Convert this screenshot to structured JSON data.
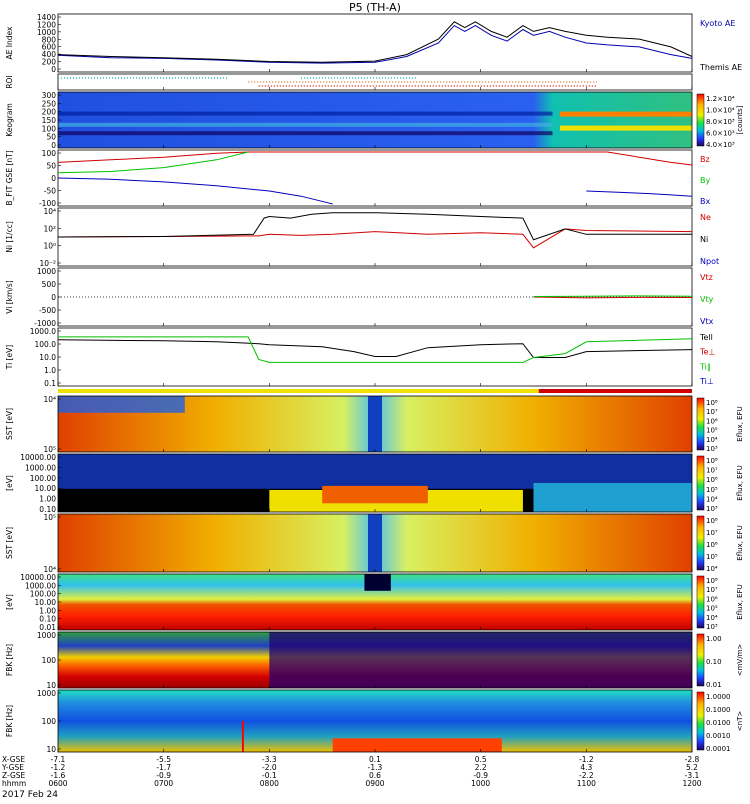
{
  "title": "P5 (TH-A)",
  "date": "2017 Feb 24",
  "colors": {
    "kyoto": "#0000b0",
    "themis": "#000000",
    "red": "#d00000",
    "green": "#00c000",
    "blue": "#0000c0",
    "black": "#000000",
    "cyan": "#00b0b0",
    "orange": "#e07000"
  },
  "chart_data": [
    {
      "id": "ae",
      "type": "line",
      "ylabel": "AE Index",
      "ylim": [
        0,
        1400
      ],
      "yticks": [
        "1400",
        "1200",
        "1000",
        "800",
        "600",
        "400",
        "200",
        "0"
      ],
      "legend": [
        {
          "label": "Kyoto AE",
          "color": "#0000b0"
        },
        {
          "label": "Themis AE",
          "color": "#000000"
        }
      ],
      "series": [
        {
          "name": "Kyoto AE",
          "x": [
            6.0,
            6.5,
            7.0,
            7.5,
            8.0,
            8.5,
            9.0,
            9.3,
            9.6,
            9.75,
            9.85,
            9.95,
            10.1,
            10.25,
            10.4,
            10.5,
            10.65,
            10.8,
            11.0,
            11.2,
            11.5,
            11.8,
            12.0
          ],
          "y": [
            380,
            320,
            300,
            260,
            200,
            180,
            200,
            350,
            700,
            1150,
            1000,
            1150,
            900,
            750,
            1050,
            900,
            1000,
            850,
            700,
            650,
            600,
            400,
            300
          ]
        },
        {
          "name": "Themis AE",
          "x": [
            6.0,
            6.5,
            7.0,
            7.5,
            8.0,
            8.5,
            9.0,
            9.3,
            9.6,
            9.75,
            9.85,
            9.95,
            10.1,
            10.25,
            10.4,
            10.5,
            10.65,
            10.8,
            11.0,
            11.2,
            11.5,
            11.8,
            12.0
          ],
          "y": [
            400,
            350,
            320,
            280,
            220,
            200,
            230,
            400,
            800,
            1250,
            1100,
            1250,
            1000,
            850,
            1150,
            1000,
            1100,
            1000,
            900,
            850,
            800,
            600,
            350
          ]
        }
      ]
    },
    {
      "id": "roi",
      "type": "line",
      "ylabel": "ROI",
      "series": [
        {
          "name": "roi-cyan",
          "color": "#00b0b0",
          "segments": [
            [
              6.0,
              7.6
            ],
            [
              8.3,
              9.4
            ]
          ]
        },
        {
          "name": "roi-orange",
          "color": "#e07000",
          "segments": [
            [
              7.8,
              11.1
            ]
          ]
        },
        {
          "name": "roi-red",
          "color": "#d00000",
          "segments": [
            [
              7.9,
              11.1
            ]
          ]
        }
      ]
    },
    {
      "id": "keogram",
      "type": "heatmap",
      "ylabel": "Keogram",
      "ylim": [
        0,
        300
      ],
      "yticks": [
        "300",
        "250",
        "200",
        "150",
        "100",
        "50",
        "0"
      ],
      "colorbar": {
        "label": "[counts]",
        "ticks": [
          "1.2×10⁴",
          "1.0×10⁴",
          "8.0×10³",
          "6.0×10³",
          "4.0×10³"
        ]
      }
    },
    {
      "id": "bfit",
      "type": "line",
      "ylabel": "B_FIT GSE [nT]",
      "ylim": [
        -100,
        100
      ],
      "yticks": [
        "100",
        "50",
        "0",
        "-50",
        "-100"
      ],
      "legend": [
        {
          "label": "Bz",
          "color": "#d00000"
        },
        {
          "label": "By",
          "color": "#00c000"
        },
        {
          "label": "Bx",
          "color": "#0000c0"
        }
      ],
      "series": [
        {
          "name": "Bz",
          "x": [
            6.0,
            6.5,
            7.0,
            7.5,
            7.8,
            11.2,
            11.5,
            11.8,
            12.0
          ],
          "y": [
            60,
            70,
            80,
            95,
            100,
            100,
            80,
            60,
            50
          ]
        },
        {
          "name": "By",
          "x": [
            6.0,
            6.5,
            7.0,
            7.5,
            7.8
          ],
          "y": [
            20,
            25,
            40,
            70,
            100
          ]
        },
        {
          "name": "Bx",
          "x": [
            6.0,
            6.5,
            7.0,
            7.5,
            8.0,
            8.3,
            8.55,
            8.6
          ],
          "y": [
            0,
            -5,
            -15,
            -30,
            -50,
            -70,
            -95,
            -100
          ]
        },
        {
          "name": "Bx-late",
          "x": [
            11.0,
            11.3,
            11.6,
            11.8,
            12.0
          ],
          "y": [
            -50,
            -55,
            -60,
            -65,
            -70
          ]
        }
      ]
    },
    {
      "id": "ni",
      "type": "line",
      "ylabel": "Ni [1/cc]",
      "scale": "log",
      "ylim": [
        -5,
        5
      ],
      "yticks": [
        "10⁴",
        "10²",
        "10⁰",
        "10⁻²"
      ],
      "legend": [
        {
          "label": "Ne",
          "color": "#d00000"
        },
        {
          "label": "Ni",
          "color": "#000000"
        },
        {
          "label": "Npot",
          "color": "#0000c0"
        }
      ],
      "series": [
        {
          "name": "Ne",
          "x": [
            6.0,
            7.0,
            7.9,
            8.0,
            8.3,
            8.6,
            9.0,
            9.5,
            10.0,
            10.4,
            10.5,
            10.8,
            11.0,
            12.0
          ],
          "y": [
            0,
            0.1,
            0.2,
            0.5,
            0.3,
            0.5,
            1.0,
            0.5,
            0.8,
            0.5,
            -2,
            1.5,
            1.2,
            1.0
          ]
        },
        {
          "name": "Ni",
          "x": [
            6.0,
            7.0,
            7.85,
            7.95,
            8.0,
            8.2,
            8.4,
            8.6,
            9.0,
            9.5,
            10.0,
            10.4,
            10.5,
            10.8,
            11.0,
            12.0
          ],
          "y": [
            0,
            0.1,
            0.5,
            3.5,
            3.8,
            3.5,
            4.2,
            4.5,
            4.5,
            4.2,
            3.8,
            3.5,
            -0.5,
            1.5,
            0.5,
            0.5
          ]
        }
      ]
    },
    {
      "id": "vi",
      "type": "line",
      "ylabel": "Vi [km/s]",
      "ylim": [
        -1500,
        1500
      ],
      "yticks": [
        "1000",
        "500",
        "0",
        "-500",
        "-1000"
      ],
      "legend": [
        {
          "label": "Vtz",
          "color": "#d00000"
        },
        {
          "label": "Vty",
          "color": "#00c000"
        },
        {
          "label": "Vtx",
          "color": "#0000c0"
        }
      ],
      "series": [
        {
          "name": "Vtz",
          "x": [
            10.5,
            11.0,
            11.5,
            12.0
          ],
          "y": [
            0,
            -50,
            -20,
            -30
          ]
        },
        {
          "name": "Vty",
          "x": [
            10.5,
            11.0,
            11.5,
            12.0
          ],
          "y": [
            30,
            40,
            60,
            40
          ]
        }
      ]
    },
    {
      "id": "ti",
      "type": "line",
      "ylabel": "Ti [eV]",
      "scale": "log",
      "ylim": [
        -1.5,
        4
      ],
      "yticks": [
        "1000.0",
        "100.0",
        "10.0",
        "1.0",
        "0.1"
      ],
      "legend": [
        {
          "label": "Tell",
          "color": "#000000"
        },
        {
          "label": "Te⊥",
          "color": "#d00000"
        },
        {
          "label": "Ti∥",
          "color": "#00c000"
        },
        {
          "label": "Ti⊥",
          "color": "#0000c0"
        }
      ],
      "series": [
        {
          "name": "Tell",
          "x": [
            6.0,
            7.0,
            7.5,
            7.9,
            8.0,
            8.5,
            8.8,
            9.0,
            9.2,
            9.5,
            10.0,
            10.4,
            10.5,
            10.8,
            11.0,
            12.0
          ],
          "y": [
            3.0,
            2.9,
            2.8,
            2.6,
            2.5,
            2.3,
            1.8,
            1.3,
            1.3,
            2.2,
            2.5,
            2.6,
            1.2,
            1.2,
            1.8,
            2.0
          ]
        },
        {
          "name": "Ti∥",
          "x": [
            6.0,
            7.0,
            7.8,
            7.9,
            8.0,
            9.0,
            10.0,
            10.4,
            10.5,
            10.8,
            11.0,
            12.0
          ],
          "y": [
            3.3,
            3.3,
            3.3,
            1.0,
            0.7,
            0.7,
            0.7,
            0.7,
            1.2,
            1.6,
            2.8,
            3.1
          ]
        }
      ]
    },
    {
      "id": "sst-e",
      "type": "heatmap",
      "ylabel": "SST [eV]",
      "yticks": [
        "10⁴",
        "10⁵"
      ],
      "colorbar": {
        "label": "Eflux, EFU",
        "ticks": [
          "10⁸",
          "10⁷",
          "10⁶",
          "10⁵",
          "10⁴",
          "10³"
        ]
      }
    },
    {
      "id": "esa-e",
      "type": "heatmap",
      "ylabel": "[eV]",
      "yticks": [
        "10000.00",
        "1000.00",
        "100.00",
        "10.00",
        "1.00",
        "0.10"
      ],
      "colorbar": {
        "label": "Eflux, EFU",
        "ticks": [
          "10⁸",
          "10⁷",
          "10⁶",
          "10⁵",
          "10⁴",
          "10³"
        ]
      }
    },
    {
      "id": "sst-i",
      "type": "heatmap",
      "ylabel": "SST [eV]",
      "yticks": [
        "10⁵",
        "10⁴"
      ],
      "colorbar": {
        "label": "Eflux, EFU",
        "ticks": [
          "10⁸",
          "10⁷",
          "10⁶",
          "10⁵",
          "10⁴"
        ]
      }
    },
    {
      "id": "esa-i",
      "type": "heatmap",
      "ylabel": "[eV]",
      "yticks": [
        "10000.00",
        "1000.00",
        "100.00",
        "10.00",
        "1.00",
        "0.10",
        "0.01"
      ],
      "colorbar": {
        "label": "Eflux, EFU",
        "ticks": [
          "10⁸",
          "10⁷",
          "10⁶",
          "10⁵",
          "10⁴",
          "10³"
        ]
      }
    },
    {
      "id": "fbk-e",
      "type": "heatmap",
      "ylabel": "FBK [Hz]",
      "yticks": [
        "1000",
        "100",
        "10"
      ],
      "colorbar": {
        "label": "<mV/m>",
        "ticks": [
          "1.00",
          "0.10",
          "0.01"
        ]
      }
    },
    {
      "id": "fbk-b",
      "type": "heatmap",
      "ylabel": "FBK [Hz]",
      "yticks": [
        "1000",
        "100",
        "10"
      ],
      "colorbar": {
        "label": "<nT>",
        "ticks": [
          "1.0000",
          "0.1000",
          "0.0100",
          "0.0010",
          "0.0001"
        ]
      }
    }
  ],
  "xaxis": {
    "row_labels": [
      "X-GSE",
      "Y-GSE",
      "Z-GSE",
      "hhmm"
    ],
    "columns": [
      {
        "x": 6.0,
        "vals": [
          "-7.1",
          "-1.2",
          "-1.6",
          "0600"
        ]
      },
      {
        "x": 7.0,
        "vals": [
          "-5.5",
          "-1.7",
          "-0.9",
          "0700"
        ]
      },
      {
        "x": 8.0,
        "vals": [
          "-3.3",
          "-2.0",
          "-0.1",
          "0800"
        ]
      },
      {
        "x": 9.0,
        "vals": [
          "0.1",
          "-1.3",
          "0.6",
          "0900"
        ]
      },
      {
        "x": 10.0,
        "vals": [
          "0.5",
          "2.2",
          "-0.9",
          "1000"
        ]
      },
      {
        "x": 11.0,
        "vals": [
          "-1.2",
          "4.3",
          "-2.2",
          "1100"
        ]
      },
      {
        "x": 12.0,
        "vals": [
          "-2.8",
          "5.2",
          "-3.1",
          "1200"
        ]
      }
    ]
  }
}
